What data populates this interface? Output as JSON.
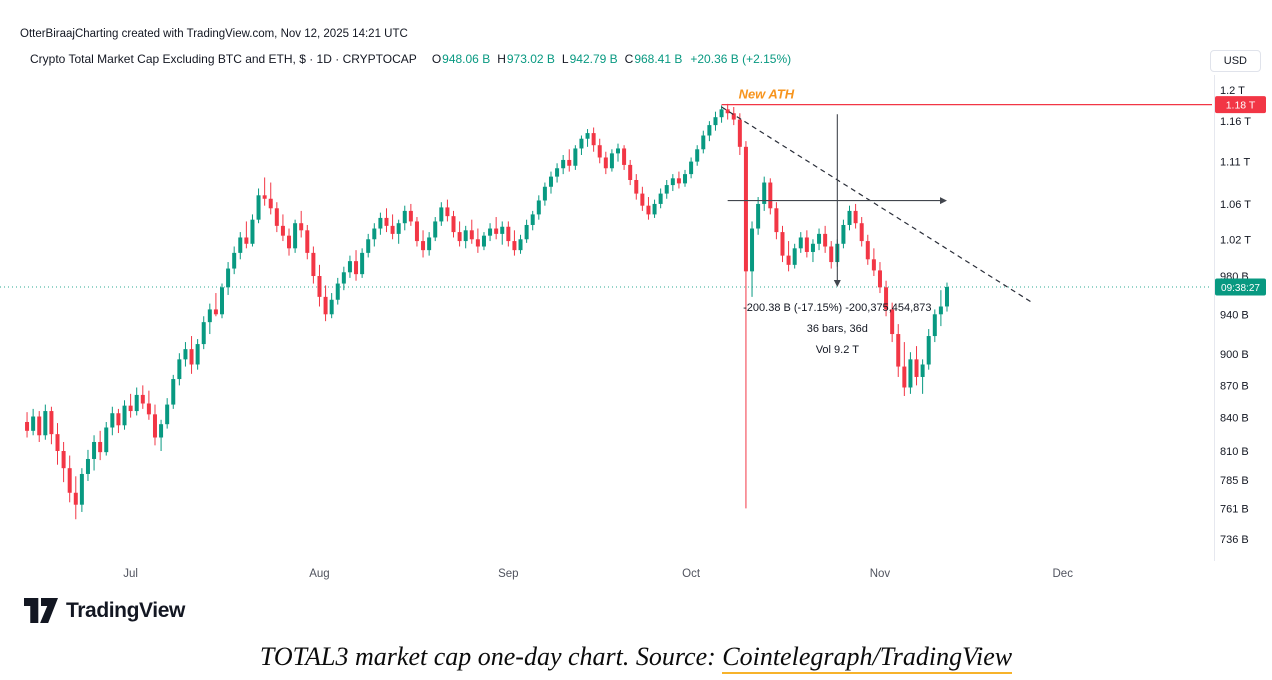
{
  "attribution": "OtterBiraajCharting created with TradingView.com, Nov 12, 2025 14:21 UTC",
  "header": {
    "symbol_title": "Crypto Total Market Cap Excluding BTC and ETH, $ · 1D · CRYPTOCAP",
    "ohlc": {
      "o_label": "O",
      "o_value": "948.06 B",
      "h_label": "H",
      "h_value": "973.02 B",
      "l_label": "L",
      "l_value": "942.79 B",
      "c_label": "C",
      "c_value": "968.41 B",
      "change": "+20.36 B (+2.15%)"
    },
    "currency_button": "USD"
  },
  "chart_data": {
    "type": "candlestick",
    "symbol": "CRYPTOCAP:TOTAL3",
    "interval": "1D",
    "scale": "log",
    "units": "billions USD",
    "colors": {
      "up": "#089981",
      "down": "#f23645"
    },
    "price_axis": {
      "min": 736,
      "max": 1200,
      "ticks": [
        {
          "label": "1.2 T",
          "value": 1200
        },
        {
          "label": "1.16 T",
          "value": 1160
        },
        {
          "label": "1.11 T",
          "value": 1110
        },
        {
          "label": "1.06 T",
          "value": 1060
        },
        {
          "label": "1.02 T",
          "value": 1020
        },
        {
          "label": "980 B",
          "value": 980
        },
        {
          "label": "940 B",
          "value": 940
        },
        {
          "label": "900 B",
          "value": 900
        },
        {
          "label": "870 B",
          "value": 870
        },
        {
          "label": "840 B",
          "value": 840
        },
        {
          "label": "810 B",
          "value": 810
        },
        {
          "label": "785 B",
          "value": 785
        },
        {
          "label": "761 B",
          "value": 761
        },
        {
          "label": "736 B",
          "value": 736
        }
      ]
    },
    "time_axis": {
      "total_slots": 195,
      "months": [
        {
          "label": "Jul",
          "index": 17
        },
        {
          "label": "Aug",
          "index": 48
        },
        {
          "label": "Sep",
          "index": 79
        },
        {
          "label": "Oct",
          "index": 109
        },
        {
          "label": "Nov",
          "index": 140
        },
        {
          "label": "Dec",
          "index": 170
        }
      ]
    },
    "candles": [
      [
        836,
        845,
        822,
        828
      ],
      [
        828,
        848,
        824,
        841
      ],
      [
        841,
        846,
        818,
        824
      ],
      [
        824,
        852,
        820,
        846
      ],
      [
        846,
        850,
        816,
        825
      ],
      [
        825,
        835,
        798,
        810
      ],
      [
        810,
        818,
        783,
        795
      ],
      [
        795,
        806,
        766,
        774
      ],
      [
        774,
        788,
        752,
        764
      ],
      [
        764,
        795,
        758,
        790
      ],
      [
        790,
        811,
        784,
        803
      ],
      [
        803,
        824,
        793,
        818
      ],
      [
        818,
        828,
        802,
        809
      ],
      [
        809,
        836,
        806,
        831
      ],
      [
        831,
        850,
        824,
        844
      ],
      [
        844,
        848,
        826,
        833
      ],
      [
        833,
        856,
        829,
        851
      ],
      [
        851,
        862,
        840,
        846
      ],
      [
        846,
        868,
        842,
        861
      ],
      [
        861,
        870,
        848,
        853
      ],
      [
        853,
        865,
        838,
        843
      ],
      [
        843,
        852,
        815,
        822
      ],
      [
        822,
        838,
        810,
        834
      ],
      [
        834,
        858,
        830,
        852
      ],
      [
        852,
        880,
        848,
        876
      ],
      [
        876,
        901,
        870,
        895
      ],
      [
        895,
        912,
        888,
        905
      ],
      [
        905,
        918,
        881,
        890
      ],
      [
        890,
        915,
        885,
        910
      ],
      [
        910,
        938,
        905,
        932
      ],
      [
        932,
        951,
        920,
        945
      ],
      [
        945,
        962,
        938,
        940
      ],
      [
        940,
        972,
        936,
        968
      ],
      [
        968,
        995,
        960,
        988
      ],
      [
        988,
        1012,
        982,
        1005
      ],
      [
        1005,
        1028,
        998,
        1022
      ],
      [
        1022,
        1040,
        1010,
        1015
      ],
      [
        1015,
        1048,
        1012,
        1042
      ],
      [
        1042,
        1078,
        1038,
        1070
      ],
      [
        1070,
        1091,
        1058,
        1066
      ],
      [
        1066,
        1085,
        1048,
        1055
      ],
      [
        1055,
        1062,
        1028,
        1035
      ],
      [
        1035,
        1048,
        1018,
        1024
      ],
      [
        1024,
        1032,
        1002,
        1010
      ],
      [
        1010,
        1042,
        1005,
        1038
      ],
      [
        1038,
        1052,
        1022,
        1030
      ],
      [
        1030,
        1036,
        998,
        1005
      ],
      [
        1005,
        1012,
        972,
        980
      ],
      [
        980,
        992,
        948,
        958
      ],
      [
        958,
        970,
        933,
        940
      ],
      [
        940,
        962,
        936,
        955
      ],
      [
        955,
        978,
        950,
        972
      ],
      [
        972,
        990,
        965,
        984
      ],
      [
        984,
        1002,
        978,
        996
      ],
      [
        996,
        1008,
        975,
        982
      ],
      [
        982,
        1010,
        978,
        1005
      ],
      [
        1005,
        1026,
        1000,
        1020
      ],
      [
        1020,
        1038,
        1012,
        1032
      ],
      [
        1032,
        1050,
        1025,
        1044
      ],
      [
        1044,
        1055,
        1028,
        1035
      ],
      [
        1035,
        1048,
        1020,
        1026
      ],
      [
        1026,
        1042,
        1015,
        1038
      ],
      [
        1038,
        1058,
        1030,
        1052
      ],
      [
        1052,
        1060,
        1035,
        1040
      ],
      [
        1040,
        1045,
        1012,
        1018
      ],
      [
        1018,
        1030,
        1000,
        1008
      ],
      [
        1008,
        1028,
        1002,
        1022
      ],
      [
        1022,
        1045,
        1018,
        1040
      ],
      [
        1040,
        1062,
        1035,
        1056
      ],
      [
        1056,
        1065,
        1040,
        1046
      ],
      [
        1046,
        1052,
        1022,
        1028
      ],
      [
        1028,
        1040,
        1012,
        1018
      ],
      [
        1018,
        1035,
        1010,
        1030
      ],
      [
        1030,
        1042,
        1015,
        1020
      ],
      [
        1020,
        1032,
        1005,
        1012
      ],
      [
        1012,
        1028,
        1008,
        1024
      ],
      [
        1024,
        1038,
        1018,
        1032
      ],
      [
        1032,
        1045,
        1020,
        1026
      ],
      [
        1026,
        1040,
        1014,
        1034
      ],
      [
        1034,
        1040,
        1012,
        1018
      ],
      [
        1018,
        1030,
        1002,
        1008
      ],
      [
        1008,
        1025,
        1004,
        1020
      ],
      [
        1020,
        1042,
        1016,
        1036
      ],
      [
        1036,
        1052,
        1030,
        1048
      ],
      [
        1048,
        1070,
        1042,
        1064
      ],
      [
        1064,
        1085,
        1058,
        1080
      ],
      [
        1080,
        1098,
        1072,
        1092
      ],
      [
        1092,
        1108,
        1085,
        1102
      ],
      [
        1102,
        1118,
        1095,
        1112
      ],
      [
        1112,
        1125,
        1098,
        1105
      ],
      [
        1105,
        1130,
        1100,
        1126
      ],
      [
        1126,
        1142,
        1118,
        1138
      ],
      [
        1138,
        1150,
        1128,
        1145
      ],
      [
        1145,
        1152,
        1122,
        1130
      ],
      [
        1130,
        1138,
        1108,
        1115
      ],
      [
        1115,
        1122,
        1095,
        1102
      ],
      [
        1102,
        1125,
        1098,
        1120
      ],
      [
        1120,
        1132,
        1110,
        1126
      ],
      [
        1126,
        1130,
        1100,
        1106
      ],
      [
        1106,
        1112,
        1082,
        1088
      ],
      [
        1088,
        1095,
        1065,
        1072
      ],
      [
        1072,
        1080,
        1052,
        1058
      ],
      [
        1058,
        1068,
        1042,
        1048
      ],
      [
        1048,
        1065,
        1044,
        1060
      ],
      [
        1060,
        1078,
        1055,
        1072
      ],
      [
        1072,
        1088,
        1066,
        1082
      ],
      [
        1082,
        1095,
        1075,
        1090
      ],
      [
        1090,
        1098,
        1078,
        1084
      ],
      [
        1084,
        1100,
        1080,
        1095
      ],
      [
        1095,
        1115,
        1090,
        1110
      ],
      [
        1110,
        1130,
        1105,
        1125
      ],
      [
        1125,
        1148,
        1120,
        1142
      ],
      [
        1142,
        1160,
        1135,
        1155
      ],
      [
        1155,
        1172,
        1148,
        1165
      ],
      [
        1165,
        1180,
        1158,
        1175
      ],
      [
        1175,
        1182,
        1162,
        1170
      ],
      [
        1170,
        1178,
        1155,
        1162
      ],
      [
        1162,
        1170,
        1118,
        1128
      ],
      [
        1128,
        1135,
        761,
        985
      ],
      [
        985,
        1040,
        958,
        1032
      ],
      [
        1032,
        1068,
        1025,
        1060
      ],
      [
        1060,
        1092,
        1052,
        1085
      ],
      [
        1085,
        1090,
        1048,
        1055
      ],
      [
        1055,
        1062,
        1020,
        1028
      ],
      [
        1028,
        1035,
        995,
        1002
      ],
      [
        1002,
        1018,
        985,
        992
      ],
      [
        992,
        1015,
        988,
        1010
      ],
      [
        1010,
        1028,
        1005,
        1022
      ],
      [
        1022,
        1030,
        1000,
        1006
      ],
      [
        1006,
        1020,
        995,
        1015
      ],
      [
        1015,
        1032,
        1008,
        1026
      ],
      [
        1026,
        1035,
        1005,
        1012
      ],
      [
        1012,
        1018,
        988,
        995
      ],
      [
        995,
        1020,
        990,
        1015
      ],
      [
        1015,
        1042,
        1010,
        1036
      ],
      [
        1036,
        1058,
        1030,
        1052
      ],
      [
        1052,
        1060,
        1032,
        1038
      ],
      [
        1038,
        1045,
        1012,
        1018
      ],
      [
        1018,
        1025,
        992,
        998
      ],
      [
        998,
        1010,
        980,
        986
      ],
      [
        986,
        995,
        962,
        968
      ],
      [
        968,
        975,
        938,
        945
      ],
      [
        945,
        952,
        912,
        920
      ],
      [
        920,
        930,
        878,
        888
      ],
      [
        888,
        912,
        860,
        868
      ],
      [
        868,
        902,
        862,
        895
      ],
      [
        895,
        908,
        870,
        878
      ],
      [
        878,
        895,
        862,
        890
      ],
      [
        890,
        925,
        885,
        918
      ],
      [
        918,
        945,
        912,
        940
      ],
      [
        940,
        965,
        928,
        948
      ],
      [
        948.06,
        973.02,
        942.79,
        968.41
      ]
    ],
    "annotations": {
      "ath_line": {
        "price": 1181,
        "label": "1.18 T",
        "start_index": 114,
        "text": "New ATH",
        "text_color": "#f7941d"
      },
      "current_price": {
        "value": 968.41,
        "countdown": "09:38:27"
      },
      "trendline": {
        "from": {
          "index": 114,
          "price": 1178
        },
        "to": {
          "index": 165,
          "price": 952
        },
        "style": "dashed"
      },
      "measure": {
        "start_index": 115,
        "end_index": 151,
        "start_price": 1168.8,
        "end_price": 968.41,
        "line1": "-200.38 B (-17.15%) -200,375,454,873",
        "line2": "36 bars, 36d",
        "line3": "Vol 9.2 T"
      }
    }
  },
  "footer": {
    "logo_text": "TradingView"
  },
  "caption": {
    "text": "TOTAL3 market cap one-day chart. Source: ",
    "link": "Cointelegraph/TradingView",
    "underline_color": "#f7b32b"
  }
}
